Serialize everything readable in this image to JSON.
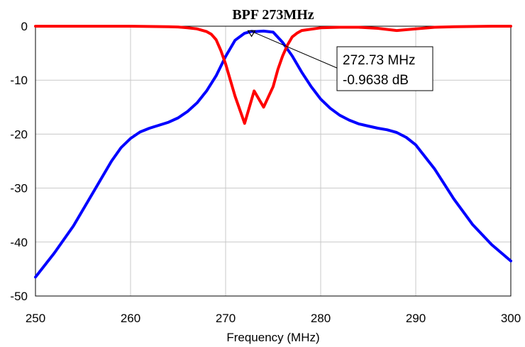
{
  "chart_data": {
    "type": "line",
    "title": "BPF 273MHz",
    "xlabel": "Frequency (MHz)",
    "ylabel": "",
    "xlim": [
      250,
      300
    ],
    "ylim": [
      -50,
      0
    ],
    "xticks": [
      "250",
      "260",
      "270",
      "280",
      "290",
      "300"
    ],
    "yticks": [
      "0",
      "-10",
      "-20",
      "-30",
      "-40",
      "-50"
    ],
    "grid": true,
    "series": [
      {
        "color": "#0000ff",
        "x": [
          250,
          252,
          254,
          256,
          258,
          259,
          260,
          261,
          262,
          264,
          265,
          266,
          267,
          268,
          269,
          270,
          271,
          272,
          272.73,
          273,
          274,
          275,
          276,
          277,
          278,
          279,
          280,
          281,
          282,
          283,
          284,
          285,
          286,
          287,
          288,
          289,
          290,
          292,
          294,
          296,
          298,
          300
        ],
        "y": [
          -46.5,
          -42.0,
          -37.0,
          -31.0,
          -25.0,
          -22.5,
          -20.8,
          -19.6,
          -18.9,
          -17.8,
          -17.0,
          -15.8,
          -14.2,
          -12.0,
          -9.2,
          -5.6,
          -2.6,
          -1.3,
          -0.96,
          -1.0,
          -0.9,
          -1.1,
          -3.0,
          -5.5,
          -8.5,
          -11.2,
          -13.5,
          -15.2,
          -16.5,
          -17.4,
          -18.1,
          -18.5,
          -18.9,
          -19.2,
          -19.7,
          -20.6,
          -22.0,
          -26.5,
          -32.0,
          -36.8,
          -40.5,
          -43.5
        ]
      },
      {
        "color": "#ff0000",
        "x": [
          250,
          255,
          260,
          262,
          264,
          265,
          266,
          267,
          268,
          268.5,
          269,
          269.5,
          270,
          270.5,
          271,
          272,
          272.5,
          273,
          273.5,
          274,
          275,
          275.5,
          276,
          276.5,
          277,
          277.5,
          278,
          280,
          282,
          284,
          286,
          288,
          290,
          292,
          294,
          296,
          298,
          300
        ],
        "y": [
          0,
          0,
          0,
          -0.05,
          -0.1,
          -0.15,
          -0.3,
          -0.5,
          -1.0,
          -1.5,
          -2.5,
          -4.5,
          -7.0,
          -10.0,
          -13.0,
          -18.0,
          -15.0,
          -12.0,
          -13.5,
          -15.0,
          -11.2,
          -8.0,
          -5.5,
          -3.5,
          -2.0,
          -1.3,
          -0.8,
          -0.3,
          -0.2,
          -0.2,
          -0.4,
          -0.8,
          -0.5,
          -0.2,
          -0.1,
          -0.05,
          0,
          0
        ]
      }
    ],
    "marker": {
      "x": 272.73,
      "y": -0.96,
      "label_freq": "272.73 MHz",
      "label_db": "-0.9638 dB"
    }
  }
}
